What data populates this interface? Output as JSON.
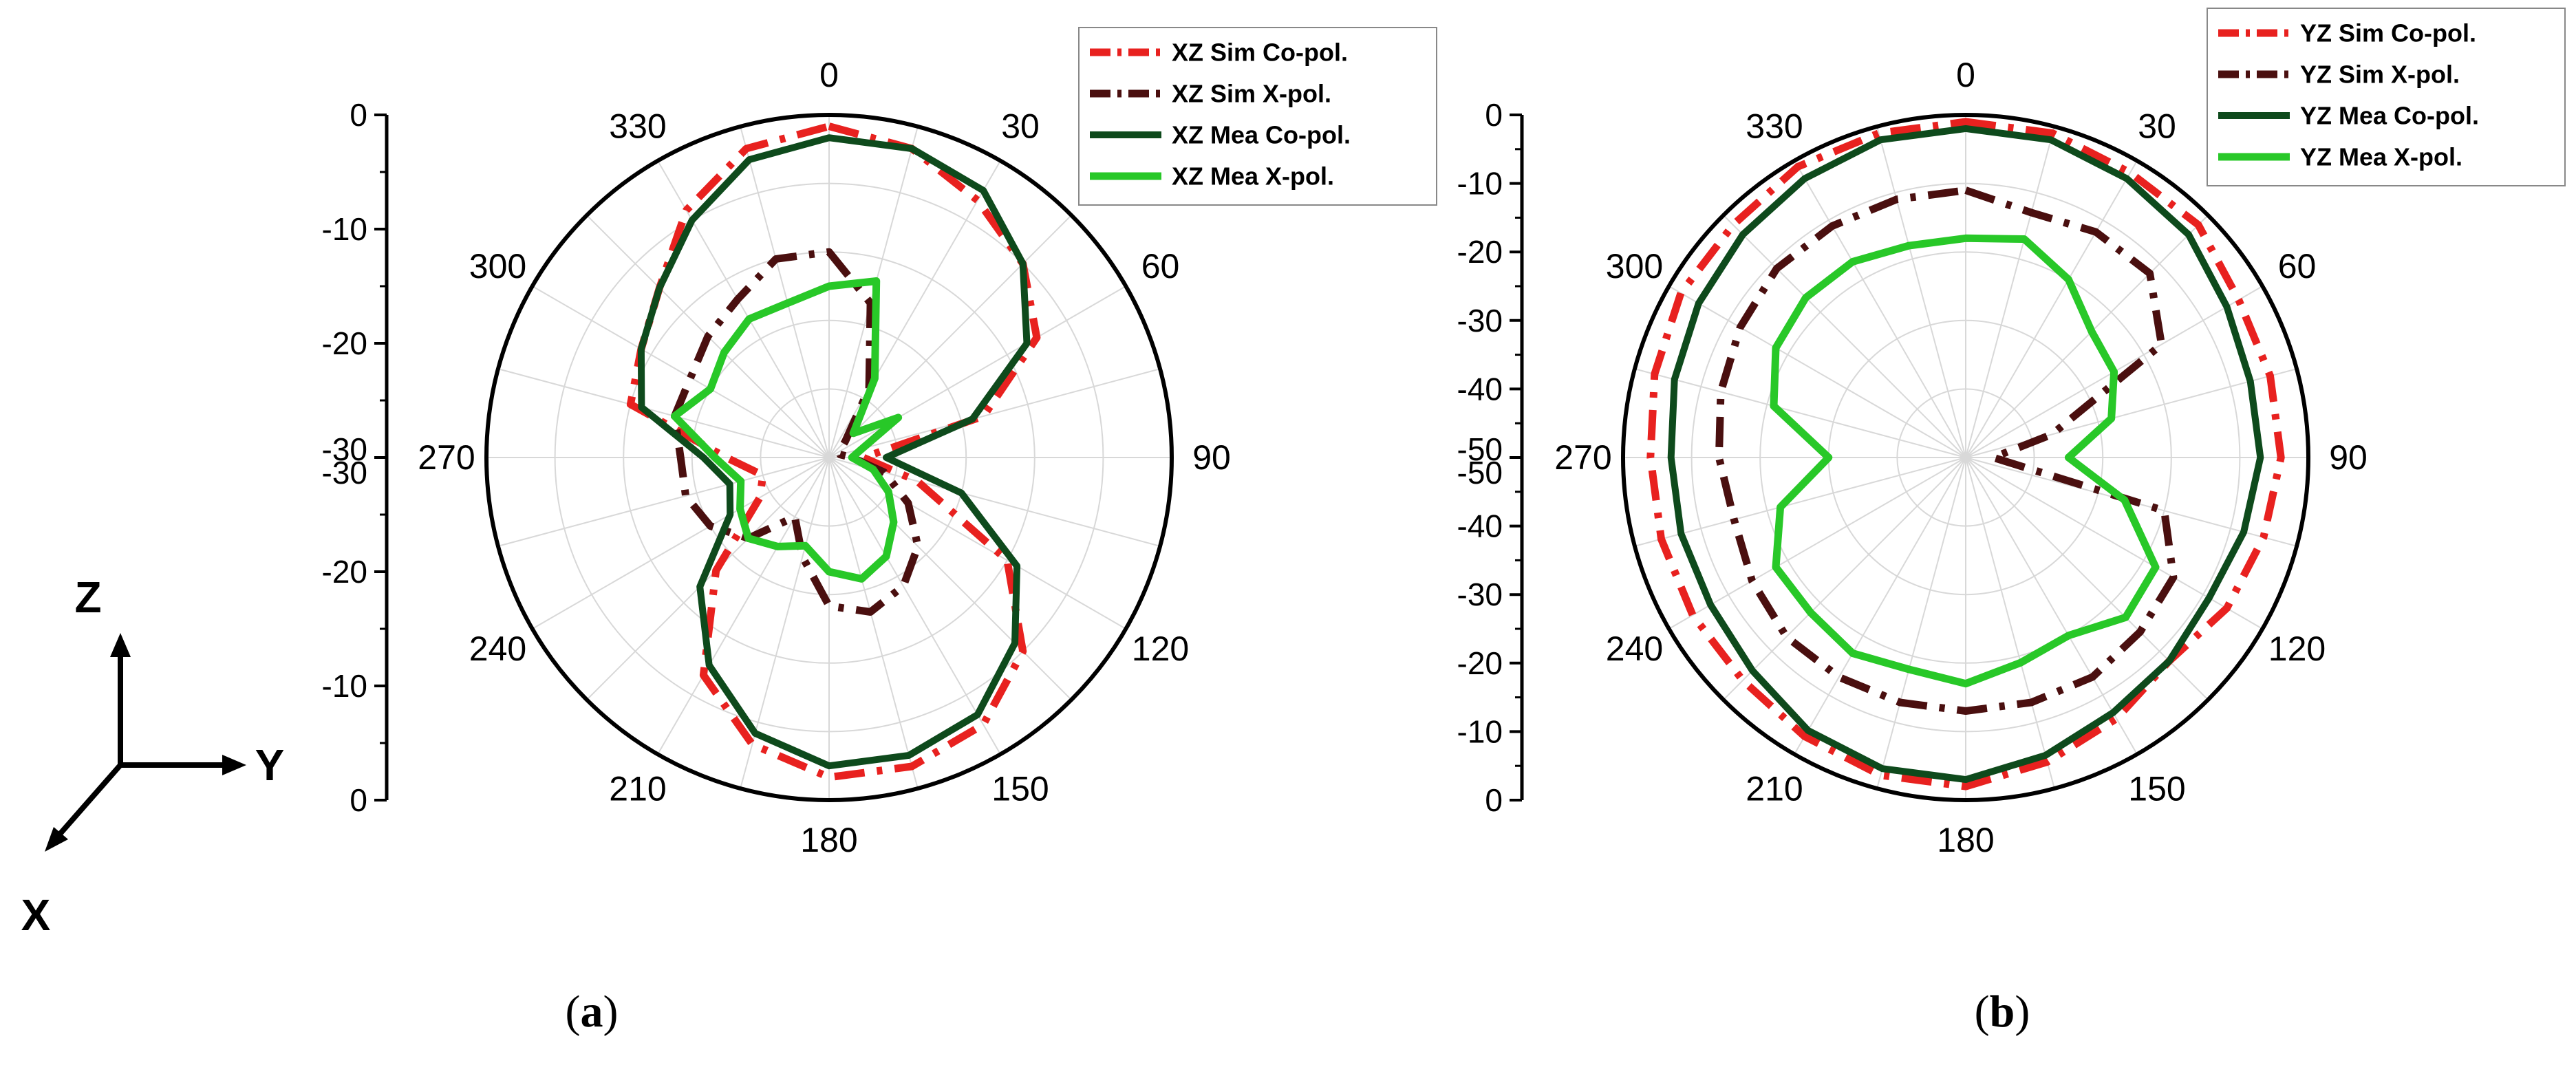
{
  "axes_icon": {
    "z": "Z",
    "y": "Y",
    "x": "X"
  },
  "chart_data": [
    {
      "type": "polar",
      "panel_label": "a",
      "angle_ticks": [
        "0",
        "30",
        "60",
        "90",
        "120",
        "150",
        "180",
        "210",
        "240",
        "270",
        "300",
        "330"
      ],
      "r_ticks_upper": [
        "0",
        "-10",
        "-20",
        "-30"
      ],
      "r_ticks_lower": [
        "-30",
        "-20",
        "-10",
        "0"
      ],
      "rlim": [
        -30,
        0
      ],
      "angle_unit": "deg",
      "grid": true,
      "legend_position": "top-right",
      "colors": {
        "sim_co": "#e8211f",
        "sim_x": "#4a0f0f",
        "mea_co": "#0e4a1c",
        "mea_x": "#28c828"
      },
      "series": [
        {
          "name": "XZ Sim Co-pol.",
          "style": "dashdot",
          "color_key": "sim_co",
          "theta": [
            0,
            15,
            30,
            45,
            60,
            75,
            90,
            105,
            120,
            135,
            150,
            165,
            180,
            195,
            210,
            225,
            240,
            255,
            270,
            285,
            300,
            315,
            330,
            345
          ],
          "r": [
            -1,
            -2,
            -4,
            -6,
            -9,
            -16,
            -27,
            -22,
            -12,
            -6,
            -3,
            -2,
            -2,
            -4,
            -8,
            -16,
            -23,
            -24,
            -21,
            -12,
            -11,
            -9,
            -5,
            -2
          ]
        },
        {
          "name": "XZ Sim X-pol.",
          "style": "dashdot",
          "color_key": "sim_x",
          "theta": [
            0,
            15,
            30,
            45,
            60,
            75,
            90,
            105,
            120,
            135,
            150,
            165,
            180,
            195,
            210,
            225,
            240,
            255,
            270,
            285,
            300,
            315,
            330,
            345
          ],
          "r": [
            -12,
            -16,
            -23,
            -28,
            -29,
            -29,
            -28,
            -25,
            -22,
            -19,
            -17,
            -16,
            -17,
            -21,
            -24,
            -20,
            -18,
            -17,
            -17,
            -16,
            -16,
            -15,
            -14,
            -12
          ]
        },
        {
          "name": "XZ Mea Co-pol.",
          "style": "solid",
          "color_key": "mea_co",
          "theta": [
            0,
            15,
            30,
            45,
            60,
            75,
            90,
            105,
            120,
            135,
            150,
            165,
            180,
            195,
            210,
            225,
            240,
            255,
            270,
            285,
            300,
            315,
            330,
            345
          ],
          "r": [
            -2,
            -2,
            -3,
            -6,
            -10,
            -17,
            -25,
            -18,
            -11,
            -7,
            -4,
            -3,
            -3,
            -5,
            -9,
            -14,
            -20,
            -21,
            -19,
            -13,
            -11,
            -9,
            -6,
            -3
          ]
        },
        {
          "name": "XZ Mea X-pol.",
          "style": "solid",
          "color_key": "mea_x",
          "theta": [
            0,
            15,
            30,
            45,
            60,
            75,
            90,
            105,
            120,
            135,
            150,
            165,
            180,
            195,
            210,
            225,
            240,
            255,
            270,
            285,
            300,
            315,
            330,
            345
          ],
          "r": [
            -15,
            -14,
            -22,
            -27,
            -23,
            -27,
            -28,
            -26,
            -24,
            -22,
            -20,
            -19,
            -20,
            -22,
            -21,
            -20,
            -21,
            -22,
            -20,
            -16,
            -18,
            -17,
            -16,
            -16
          ]
        }
      ]
    },
    {
      "type": "polar",
      "panel_label": "b",
      "angle_ticks": [
        "0",
        "30",
        "60",
        "90",
        "120",
        "150",
        "180",
        "210",
        "240",
        "270",
        "300",
        "330"
      ],
      "r_ticks_upper": [
        "0",
        "-10",
        "-20",
        "-30",
        "-40",
        "-50"
      ],
      "r_ticks_lower": [
        "-50",
        "-40",
        "-30",
        "-20",
        "-10",
        "0"
      ],
      "rlim": [
        -50,
        0
      ],
      "angle_unit": "deg",
      "grid": true,
      "legend_position": "top-right",
      "colors": {
        "sim_co": "#e8211f",
        "sim_x": "#4a0f0f",
        "mea_co": "#0e4a1c",
        "mea_x": "#28c828"
      },
      "series": [
        {
          "name": "YZ Sim Co-pol.",
          "style": "dashdot",
          "color_key": "sim_co",
          "theta": [
            0,
            15,
            30,
            45,
            60,
            75,
            90,
            105,
            120,
            135,
            150,
            165,
            180,
            195,
            210,
            225,
            240,
            255,
            270,
            285,
            300,
            315,
            330,
            345
          ],
          "r": [
            -1,
            -1,
            -2,
            -2,
            -4,
            -4,
            -4,
            -5,
            -6,
            -8,
            -6,
            -4,
            -2,
            -2,
            -3,
            -4,
            -4,
            -4,
            -4,
            -3,
            -2,
            -2,
            -1,
            -1
          ]
        },
        {
          "name": "YZ Sim X-pol.",
          "style": "dashdot",
          "color_key": "sim_x",
          "theta": [
            0,
            15,
            30,
            45,
            60,
            75,
            90,
            105,
            120,
            135,
            150,
            165,
            180,
            195,
            210,
            225,
            240,
            255,
            270,
            285,
            300,
            315,
            330,
            345
          ],
          "r": [
            -11,
            -13,
            -12,
            -12,
            -17,
            -37,
            -46,
            -20,
            -15,
            -14,
            -13,
            -13,
            -13,
            -13,
            -13,
            -13,
            -14,
            -15,
            -14,
            -13,
            -12,
            -11,
            -11,
            -11
          ]
        },
        {
          "name": "YZ Mea Co-pol.",
          "style": "solid",
          "color_key": "mea_co",
          "theta": [
            0,
            15,
            30,
            45,
            60,
            75,
            90,
            105,
            120,
            135,
            150,
            165,
            180,
            195,
            210,
            225,
            240,
            255,
            270,
            285,
            300,
            315,
            330,
            345
          ],
          "r": [
            -2,
            -2,
            -3,
            -4,
            -6,
            -7,
            -7,
            -8,
            -9,
            -8,
            -7,
            -5,
            -3,
            -3,
            -4,
            -6,
            -7,
            -7,
            -7,
            -6,
            -5,
            -4,
            -3,
            -2
          ]
        },
        {
          "name": "YZ Mea X-pol.",
          "style": "solid",
          "color_key": "mea_x",
          "theta": [
            0,
            15,
            30,
            45,
            60,
            75,
            90,
            105,
            120,
            135,
            150,
            165,
            180,
            195,
            210,
            225,
            240,
            255,
            270,
            285,
            300,
            315,
            330,
            345
          ],
          "r": [
            -18,
            -17,
            -20,
            -24,
            -25,
            -28,
            -35,
            -26,
            -18,
            -17,
            -20,
            -19,
            -17,
            -18,
            -17,
            -18,
            -18,
            -22,
            -30,
            -21,
            -18,
            -17,
            -17,
            -18
          ]
        }
      ]
    }
  ]
}
